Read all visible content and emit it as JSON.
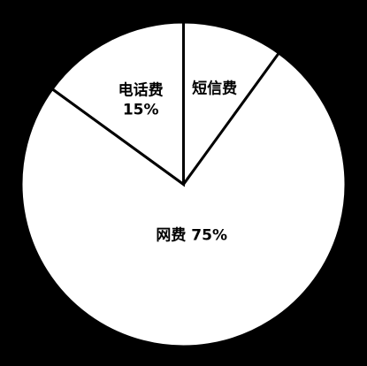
{
  "chart_data": {
    "type": "pie",
    "categories": [
      "短信费",
      "网费",
      "电话费"
    ],
    "values": [
      10,
      75,
      15
    ],
    "start_angle_deg": 0,
    "direction": "clockwise",
    "colors": {
      "background": "#000000",
      "slice_fill": "#ffffff",
      "slice_stroke": "#000000"
    },
    "labels": [
      {
        "slice": 0,
        "lines": [
          "短信费"
        ]
      },
      {
        "slice": 1,
        "lines": [
          "网费 75%"
        ]
      },
      {
        "slice": 2,
        "lines": [
          "电话费",
          "15%"
        ]
      }
    ]
  }
}
